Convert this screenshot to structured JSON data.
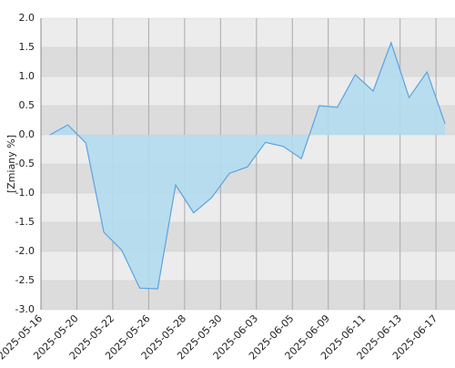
{
  "chart_data": {
    "type": "area",
    "y_label": "[Zmiany %]",
    "categories": [
      "2025-05-16",
      null,
      "2025-05-20",
      null,
      "2025-05-22",
      null,
      "2025-05-26",
      null,
      "2025-05-28",
      null,
      "2025-05-30",
      null,
      "2025-06-03",
      null,
      "2025-06-05",
      null,
      "2025-06-09",
      null,
      "2025-06-11",
      null,
      "2025-06-13",
      null,
      "2025-06-17"
    ],
    "values": [
      0.0,
      0.17,
      -0.14,
      -1.67,
      -1.98,
      -2.63,
      -2.64,
      -0.86,
      -1.34,
      -1.08,
      -0.66,
      -0.55,
      -0.13,
      -0.2,
      -0.41,
      0.5,
      0.47,
      1.03,
      0.75,
      1.58,
      0.64,
      1.08,
      0.19
    ],
    "color": "#5ba3e0",
    "fill": "#b2dbee",
    "ylim": [
      -3,
      2
    ],
    "yticks": [
      {
        "value": -3,
        "label": "-3.0"
      },
      {
        "value": -2.5,
        "label": "-2.5"
      },
      {
        "value": -2,
        "label": "-2.0"
      },
      {
        "value": -1.5,
        "label": "-1.5"
      },
      {
        "value": -1,
        "label": "-1.0"
      },
      {
        "value": -0.5,
        "label": "-0.5"
      },
      {
        "value": 0,
        "label": "0.0"
      },
      {
        "value": 0.5,
        "label": "0.5"
      },
      {
        "value": 1,
        "label": "1.0"
      },
      {
        "value": 1.5,
        "label": "1.5"
      },
      {
        "value": 2,
        "label": "2.0"
      }
    ],
    "grid": true
  }
}
